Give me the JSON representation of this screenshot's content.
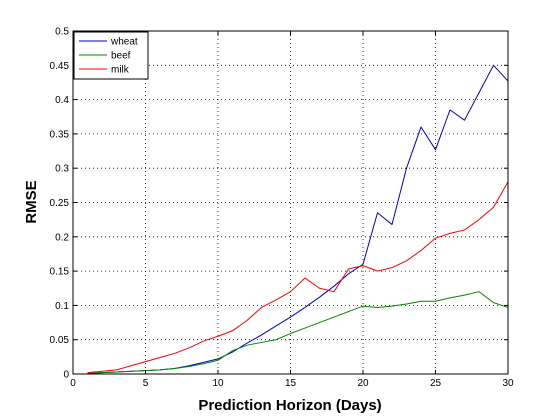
{
  "chart_data": {
    "type": "line",
    "title": "",
    "xlabel": "Prediction Horizon (Days)",
    "ylabel": "RMSE",
    "xlim": [
      0,
      30
    ],
    "ylim": [
      0,
      0.5
    ],
    "xticks": [
      0,
      5,
      10,
      15,
      20,
      25,
      30
    ],
    "yticks": [
      0,
      0.05,
      0.1,
      0.15,
      0.2,
      0.25,
      0.3,
      0.35,
      0.4,
      0.45,
      0.5
    ],
    "ytick_labels": [
      "0",
      "0.05",
      "0.1",
      "0.15",
      "0.2",
      "0.25",
      "0.3",
      "0.35",
      "0.4",
      "0.45",
      "0.5"
    ],
    "xtick_labels": [
      "0",
      "5",
      "10",
      "15",
      "20",
      "25",
      "30"
    ],
    "grid": true,
    "legend_position": "top-left",
    "x": [
      1,
      2,
      3,
      4,
      5,
      6,
      7,
      8,
      9,
      10,
      11,
      12,
      13,
      14,
      15,
      16,
      17,
      18,
      19,
      20,
      21,
      22,
      23,
      24,
      25,
      26,
      27,
      28,
      29,
      30
    ],
    "series": [
      {
        "name": "wheat",
        "color": "#0000cc",
        "values": [
          0.001,
          0.002,
          0.003,
          0.004,
          0.005,
          0.006,
          0.008,
          0.012,
          0.017,
          0.022,
          0.032,
          0.045,
          0.057,
          0.07,
          0.083,
          0.097,
          0.112,
          0.128,
          0.146,
          0.16,
          0.235,
          0.218,
          0.3,
          0.36,
          0.327,
          0.385,
          0.37,
          0.41,
          0.45,
          0.427
        ]
      },
      {
        "name": "beef",
        "color": "#008800",
        "values": [
          0.001,
          0.002,
          0.003,
          0.004,
          0.005,
          0.006,
          0.008,
          0.011,
          0.015,
          0.02,
          0.034,
          0.042,
          0.046,
          0.05,
          0.059,
          0.067,
          0.075,
          0.083,
          0.091,
          0.099,
          0.097,
          0.099,
          0.102,
          0.106,
          0.106,
          0.111,
          0.115,
          0.12,
          0.104,
          0.097
        ]
      },
      {
        "name": "milk",
        "color": "#ff0000",
        "values": [
          0.002,
          0.004,
          0.006,
          0.012,
          0.018,
          0.024,
          0.03,
          0.038,
          0.048,
          0.055,
          0.063,
          0.078,
          0.097,
          0.108,
          0.12,
          0.14,
          0.125,
          0.12,
          0.153,
          0.158,
          0.15,
          0.155,
          0.165,
          0.18,
          0.198,
          0.205,
          0.21,
          0.225,
          0.243,
          0.28
        ]
      }
    ]
  }
}
